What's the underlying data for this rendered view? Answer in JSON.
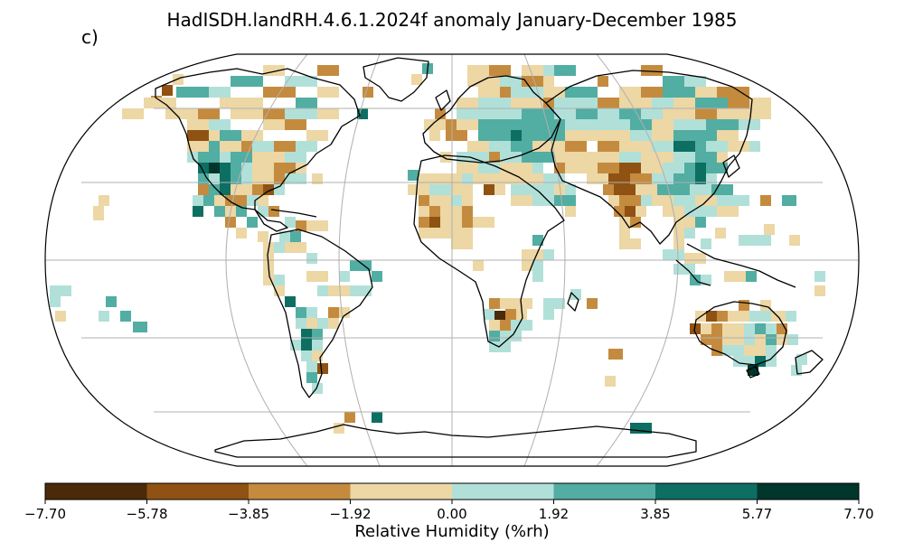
{
  "title": "HadISDH.landRH.4.6.1.2024f anomaly January-December 1985",
  "panel_label": "c)",
  "colorbar": {
    "label": "Relative Humidity (%rh)",
    "ticks": [
      "−7.70",
      "−5.78",
      "−3.85",
      "−1.92",
      "0.00",
      "1.92",
      "3.85",
      "5.77",
      "7.70"
    ],
    "colors": [
      "#543005",
      "#8c510a",
      "#bf812d",
      "#dfc27d",
      "#f6e8c3",
      "#c7eae5",
      "#80cdc1",
      "#35978f",
      "#01665e",
      "#003c30"
    ],
    "bin_colors": [
      "#4a2a08",
      "#8f5212",
      "#c48b3f",
      "#ecd7a5",
      "#b1e0d9",
      "#52ada2",
      "#0d6e62",
      "#00362c"
    ]
  },
  "map": {
    "projection": "Robinson",
    "graticule_lon_step_deg": 60,
    "graticule_lat_step_deg": 30,
    "ocean_color": "#ffffff",
    "coast_color": "#000000"
  }
}
